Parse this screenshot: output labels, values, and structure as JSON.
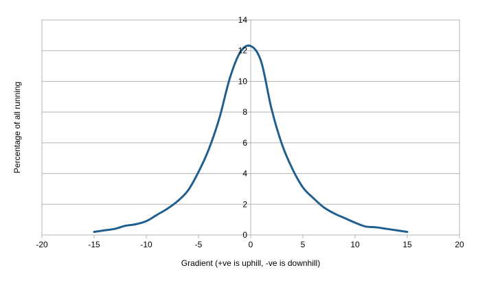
{
  "chart_data": {
    "type": "line",
    "title": "",
    "xlabel": "Gradient (+ve is uphill, -ve is downhill)",
    "ylabel": "Percentage of all running",
    "xlim": [
      -20,
      20
    ],
    "ylim": [
      0,
      14
    ],
    "x_ticks": [
      -20,
      -15,
      -10,
      -5,
      0,
      5,
      10,
      15,
      20
    ],
    "y_ticks": [
      0,
      2,
      4,
      6,
      8,
      10,
      12,
      14
    ],
    "grid": "horizontal",
    "legend": "none",
    "series": [
      {
        "color": "#1f5f8f",
        "x": [
          -15,
          -14,
          -13,
          -12,
          -11,
          -10,
          -9,
          -8,
          -7,
          -6,
          -5,
          -4,
          -3,
          -2,
          -1,
          0,
          1,
          2,
          3,
          4,
          5,
          6,
          7,
          8,
          9,
          10,
          11,
          12,
          13,
          14,
          15
        ],
        "y": [
          0.2,
          0.3,
          0.4,
          0.6,
          0.7,
          0.9,
          1.3,
          1.7,
          2.2,
          2.9,
          4.1,
          5.6,
          7.6,
          10.2,
          11.9,
          12.3,
          11.3,
          8.2,
          5.9,
          4.3,
          3.1,
          2.4,
          1.8,
          1.4,
          1.1,
          0.8,
          0.55,
          0.5,
          0.4,
          0.3,
          0.2
        ]
      }
    ]
  }
}
